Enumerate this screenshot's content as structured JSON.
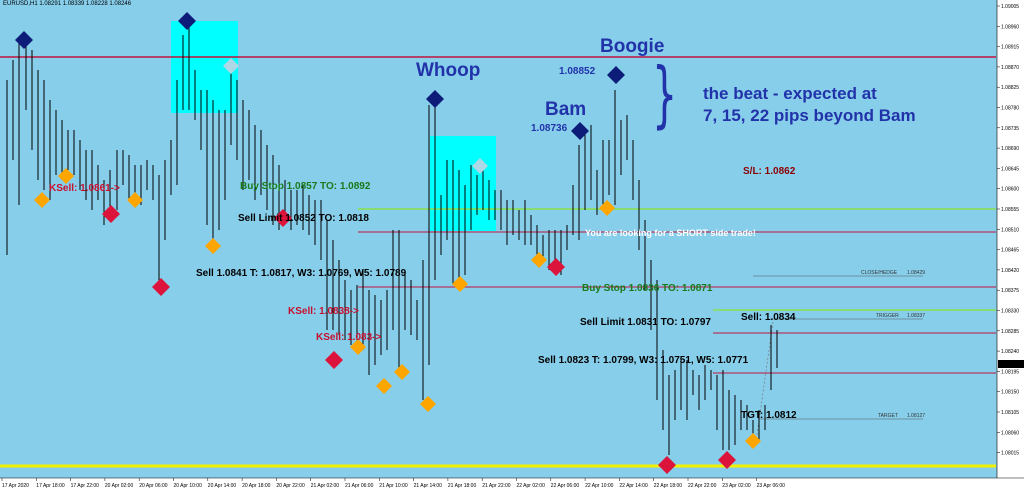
{
  "window": {
    "symbol_info": "EURUSD,H1  1.08291 1.08339 1.08228 1.08246"
  },
  "colors": {
    "background": "#87ceeb",
    "price_axis_bg": "#ffffff",
    "bar": "#000000",
    "red_line": "#c0143c",
    "green_line": "#8ae04a",
    "yellow_line": "#f0f000",
    "cyan_box": "#00ffff",
    "diamond_navy": "#0c1c78",
    "diamond_orange": "#ffa500",
    "diamond_red": "#dc143c",
    "diamond_lightblue": "#add8e6",
    "text_blue": "#2233aa",
    "text_green": "#1a7a1a",
    "text_red": "#c8102e",
    "text_darkred": "#8b0000",
    "text_white": "#ffffff",
    "text_black": "#000000"
  },
  "price_axis": {
    "labels": [
      "1.09005",
      "1.08960",
      "1.08915",
      "1.08870",
      "1.08825",
      "1.08780",
      "1.08735",
      "1.08690",
      "1.08645",
      "1.08600",
      "1.08555",
      "1.08510",
      "1.08465",
      "1.08420",
      "1.08375",
      "1.08330",
      "1.08285",
      "1.08240",
      "1.08195",
      "1.08150",
      "1.08105",
      "1.08060",
      "1.08015"
    ],
    "current_price": "1.08246"
  },
  "time_axis": {
    "labels": [
      "17 Apr 2020",
      "17 Apr 18:00",
      "17 Apr 22:00",
      "20 Apr 02:00",
      "20 Apr 06:00",
      "20 Apr 10:00",
      "20 Apr 14:00",
      "20 Apr 18:00",
      "20 Apr 22:00",
      "21 Apr 02:00",
      "21 Apr 06:00",
      "21 Apr 10:00",
      "21 Apr 14:00",
      "21 Apr 18:00",
      "21 Apr 22:00",
      "22 Apr 02:00",
      "22 Apr 06:00",
      "22 Apr 10:00",
      "22 Apr 14:00",
      "22 Apr 18:00",
      "22 Apr 22:00",
      "23 Apr 02:00",
      "23 Apr 06:00"
    ]
  },
  "annotations": {
    "boogie": "Boogie",
    "whoop": "Whoop",
    "bam": "Bam",
    "bam_price": "1.08736",
    "boogie_price": "1.08852",
    "brace": "}",
    "beat_line1": "the beat -  expected at",
    "beat_line2": "7, 15, 22 pips beyond Bam",
    "sl": "S/L: 1.0862",
    "ksell1": "KSell: 1.0861->",
    "ksell2": "KSell: 1.0838->",
    "ksell3": "KSell: 1.083->",
    "buy_stop1": "Buy Stop 1.0857 TO: 1.0892",
    "sell_limit1": "Sell Limit 1.0852 TO: 1.0818",
    "sell_main1": "Sell 1.0841 T: 1.0817, W3: 1.0769, W5: 1.0789",
    "short_msg": "You are looking for a SHORT side trade!",
    "buy_stop2": "Buy Stop 1.0836 TO: 1.0871",
    "sell_limit2": "Sell Limit 1.0831 TO: 1.0797",
    "sell_main2": "Sell 1.0823 T: 1.0799, W3: 1.0751, W5: 1.0771",
    "sell_small": "Sell: 1.0834",
    "tgt": "TGT: 1.0812",
    "close_hedge": "CLOSE/HEDGE",
    "close_hedge_val": "1.08429",
    "trigger": "TRIGGER",
    "trigger_val": "1.08337",
    "target": "TARGET",
    "target_val": "1.08127"
  }
}
